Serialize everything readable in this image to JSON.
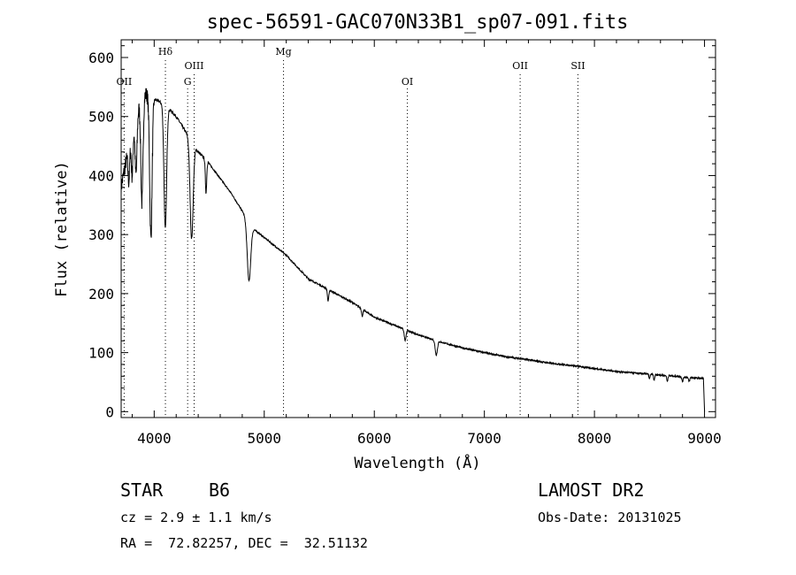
{
  "chart_data": {
    "type": "line",
    "title": "spec-56591-GAC070N33B1_sp07-091.fits",
    "xlabel": "Wavelength (Å)",
    "ylabel": "Flux (relative)",
    "xlim": [
      3700,
      9100
    ],
    "ylim": [
      -10,
      630
    ],
    "x_ticks": [
      4000,
      5000,
      6000,
      7000,
      8000,
      9000
    ],
    "y_ticks": [
      0,
      100,
      200,
      300,
      400,
      500,
      600
    ],
    "grid": false,
    "series": [
      {
        "name": "spectrum",
        "continuum": {
          "x": [
            3700,
            3800,
            3900,
            4000,
            4100,
            4200,
            4300,
            4400,
            4500,
            4600,
            4700,
            4800,
            4900,
            5000,
            5200,
            5400,
            5600,
            5800,
            6000,
            6200,
            6400,
            6600,
            6800,
            7000,
            7200,
            7400,
            7600,
            7800,
            8000,
            8200,
            8400,
            8600,
            8800,
            8990
          ],
          "y": [
            380,
            480,
            540,
            530,
            520,
            500,
            470,
            440,
            420,
            395,
            370,
            340,
            310,
            295,
            265,
            225,
            205,
            185,
            160,
            145,
            130,
            118,
            108,
            100,
            93,
            88,
            82,
            78,
            73,
            68,
            65,
            62,
            59,
            56
          ]
        },
        "absorption": [
          {
            "x": 3770,
            "depth": 60,
            "width": 8
          },
          {
            "x": 3800,
            "depth": 80,
            "width": 8
          },
          {
            "x": 3835,
            "depth": 100,
            "width": 9
          },
          {
            "x": 3889,
            "depth": 180,
            "width": 10
          },
          {
            "x": 3970,
            "depth": 240,
            "width": 11
          },
          {
            "x": 4101,
            "depth": 210,
            "width": 12
          },
          {
            "x": 4340,
            "depth": 165,
            "width": 14
          },
          {
            "x": 4471,
            "depth": 55,
            "width": 6
          },
          {
            "x": 4861,
            "depth": 100,
            "width": 16
          },
          {
            "x": 5580,
            "depth": 20,
            "width": 6
          },
          {
            "x": 5890,
            "depth": 12,
            "width": 6
          },
          {
            "x": 6280,
            "depth": 18,
            "width": 8
          },
          {
            "x": 6563,
            "depth": 24,
            "width": 10
          },
          {
            "x": 8500,
            "depth": 8,
            "width": 5
          },
          {
            "x": 8542,
            "depth": 10,
            "width": 5
          },
          {
            "x": 8662,
            "depth": 10,
            "width": 5
          },
          {
            "x": 8800,
            "depth": 8,
            "width": 6
          },
          {
            "x": 8860,
            "depth": 7,
            "width": 6
          }
        ],
        "end_drop": {
          "x": 9000,
          "y": 0
        }
      }
    ],
    "line_markers": [
      {
        "label": "OII",
        "x": 3727,
        "row": "low"
      },
      {
        "label": "Hδ",
        "x": 4102,
        "row": "top"
      },
      {
        "label": "OIII",
        "x": 4363,
        "row": "mid"
      },
      {
        "label": "G",
        "x": 4304,
        "row": "low"
      },
      {
        "label": "Mg",
        "x": 5175,
        "row": "top"
      },
      {
        "label": "OI",
        "x": 6300,
        "row": "low"
      },
      {
        "label": "OII",
        "x": 7325,
        "row": "mid"
      },
      {
        "label": "SII",
        "x": 7850,
        "row": "mid"
      }
    ]
  },
  "info": {
    "object_class": "STAR",
    "subclass": "B6",
    "survey": "LAMOST DR2",
    "cz": "cz = 2.9 ± 1.1 km/s",
    "obs_date": "Obs-Date: 20131025",
    "coords": "RA =  72.82257, DEC =  32.51132"
  }
}
